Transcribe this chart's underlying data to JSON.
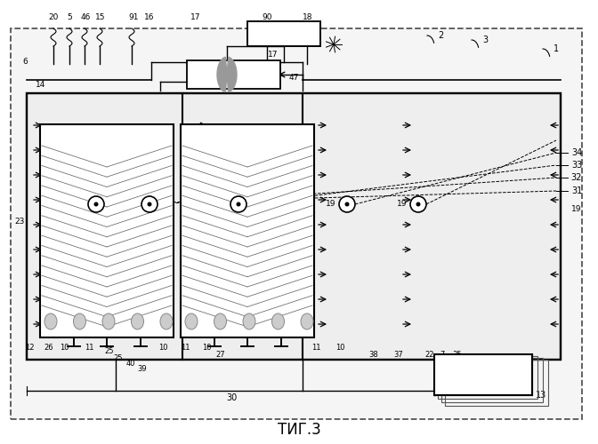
{
  "title": "ΤИГ.3",
  "bg_color": "#ffffff",
  "line_color": "#000000",
  "fig_width": 6.72,
  "fig_height": 5.0,
  "dpi": 100
}
